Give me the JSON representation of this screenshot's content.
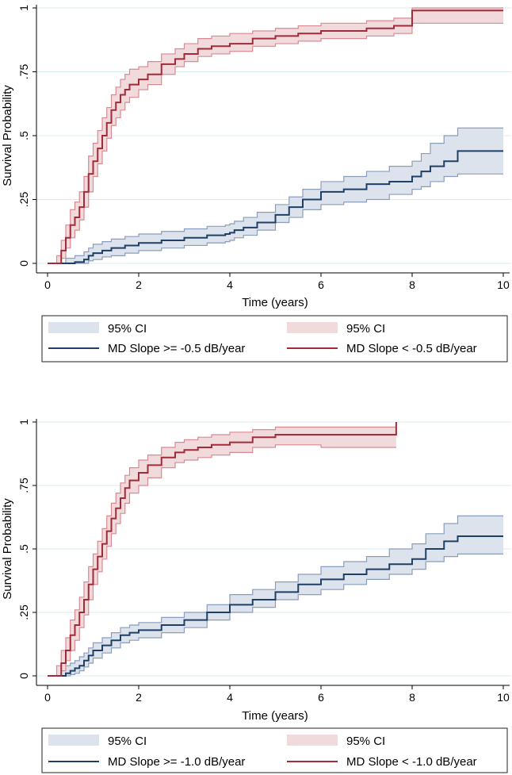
{
  "colors": {
    "group_a_line": "#1f3f66",
    "group_a_ci": "#dde3ec",
    "group_a_ci_edge": "#8a9dba",
    "group_b_line": "#a32a38",
    "group_b_ci": "#f1dadc",
    "group_b_ci_edge": "#d88a92",
    "grid": "#d8ecec"
  },
  "chart_data": [
    {
      "type": "line",
      "subtype": "kaplan-meier survival curves with 95% confidence bands",
      "xlabel": "Time (years)",
      "ylabel": "Survival Probability",
      "xlim": [
        0,
        10
      ],
      "ylim": [
        0,
        1
      ],
      "x_ticks": [
        "0",
        "2",
        "4",
        "6",
        "8",
        "10"
      ],
      "y_ticks": [
        "0",
        ".25",
        ".5",
        ".75",
        "1"
      ],
      "grid": "horizontal",
      "legend": {
        "position": "bottom",
        "ci_label_a": "95% CI",
        "ci_label_b": "95% CI",
        "line_label_a": "MD Slope >= -0.5 dB/year",
        "line_label_b": "MD Slope < -0.5 dB/year"
      },
      "series": [
        {
          "name": "MD Slope >= -0.5 dB/year",
          "x": [
            0.15,
            0.4,
            0.6,
            0.8,
            0.9,
            1.0,
            1.2,
            1.4,
            1.7,
            2.0,
            2.5,
            3.0,
            3.5,
            3.9,
            4.0,
            4.1,
            4.3,
            4.6,
            5.0,
            5.3,
            5.6,
            6.0,
            6.5,
            7.0,
            7.5,
            8.0,
            8.2,
            8.4,
            8.7,
            9.0,
            10.0
          ],
          "values": [
            0.0,
            0.0,
            0.005,
            0.015,
            0.03,
            0.04,
            0.05,
            0.06,
            0.07,
            0.08,
            0.09,
            0.1,
            0.11,
            0.115,
            0.12,
            0.13,
            0.14,
            0.16,
            0.19,
            0.22,
            0.25,
            0.28,
            0.29,
            0.31,
            0.32,
            0.34,
            0.36,
            0.38,
            0.4,
            0.44,
            0.44
          ],
          "ci_lower": [
            0.0,
            0.0,
            0.0,
            0.0,
            0.01,
            0.015,
            0.025,
            0.03,
            0.04,
            0.05,
            0.06,
            0.07,
            0.08,
            0.085,
            0.09,
            0.1,
            0.11,
            0.13,
            0.16,
            0.18,
            0.21,
            0.23,
            0.24,
            0.25,
            0.27,
            0.29,
            0.3,
            0.32,
            0.34,
            0.35,
            0.35
          ],
          "ci_upper": [
            0.0,
            0.02,
            0.03,
            0.045,
            0.06,
            0.075,
            0.085,
            0.095,
            0.105,
            0.115,
            0.125,
            0.135,
            0.145,
            0.15,
            0.155,
            0.165,
            0.18,
            0.2,
            0.23,
            0.26,
            0.29,
            0.32,
            0.34,
            0.36,
            0.38,
            0.4,
            0.43,
            0.47,
            0.5,
            0.53,
            0.53
          ]
        },
        {
          "name": "MD Slope < -0.5 dB/year",
          "x": [
            0.0,
            0.2,
            0.3,
            0.4,
            0.5,
            0.6,
            0.7,
            0.8,
            0.9,
            1.0,
            1.1,
            1.2,
            1.3,
            1.4,
            1.5,
            1.6,
            1.7,
            1.8,
            2.0,
            2.2,
            2.5,
            2.8,
            3.0,
            3.3,
            3.6,
            4.0,
            4.5,
            5.0,
            5.5,
            6.0,
            7.0,
            7.6,
            8.0,
            10.0
          ],
          "values": [
            0.0,
            0.0,
            0.05,
            0.1,
            0.15,
            0.18,
            0.22,
            0.28,
            0.35,
            0.4,
            0.45,
            0.5,
            0.55,
            0.6,
            0.63,
            0.66,
            0.68,
            0.7,
            0.72,
            0.74,
            0.78,
            0.8,
            0.82,
            0.84,
            0.85,
            0.86,
            0.88,
            0.89,
            0.9,
            0.91,
            0.92,
            0.93,
            0.99,
            0.99
          ],
          "ci_lower": [
            0.0,
            0.0,
            0.02,
            0.06,
            0.1,
            0.13,
            0.17,
            0.22,
            0.28,
            0.34,
            0.39,
            0.44,
            0.49,
            0.54,
            0.57,
            0.6,
            0.63,
            0.65,
            0.68,
            0.7,
            0.74,
            0.77,
            0.79,
            0.81,
            0.82,
            0.83,
            0.85,
            0.86,
            0.87,
            0.88,
            0.89,
            0.9,
            0.94,
            0.94
          ],
          "ci_upper": [
            0.0,
            0.03,
            0.09,
            0.15,
            0.21,
            0.24,
            0.28,
            0.34,
            0.42,
            0.47,
            0.52,
            0.57,
            0.61,
            0.66,
            0.69,
            0.72,
            0.74,
            0.76,
            0.77,
            0.79,
            0.82,
            0.84,
            0.86,
            0.88,
            0.89,
            0.9,
            0.91,
            0.92,
            0.93,
            0.94,
            0.95,
            0.96,
            1.0,
            1.0
          ]
        }
      ]
    },
    {
      "type": "line",
      "subtype": "kaplan-meier survival curves with 95% confidence bands",
      "xlabel": "Time (years)",
      "ylabel": "Survival Probability",
      "xlim": [
        0,
        10
      ],
      "ylim": [
        0,
        1
      ],
      "x_ticks": [
        "0",
        "2",
        "4",
        "6",
        "8",
        "10"
      ],
      "y_ticks": [
        "0",
        ".25",
        ".5",
        ".75",
        "1"
      ],
      "grid": "horizontal",
      "legend": {
        "position": "bottom",
        "ci_label_a": "95% CI",
        "ci_label_b": "95% CI",
        "line_label_a": "MD Slope >= -1.0 dB/year",
        "line_label_b": "MD Slope < -1.0 dB/year"
      },
      "series": [
        {
          "name": "MD Slope >= -1.0 dB/year",
          "x": [
            0.1,
            0.3,
            0.4,
            0.5,
            0.6,
            0.7,
            0.8,
            0.9,
            1.0,
            1.2,
            1.4,
            1.6,
            1.8,
            2.0,
            2.5,
            3.0,
            3.5,
            4.0,
            4.5,
            5.0,
            5.5,
            6.0,
            6.5,
            7.0,
            7.5,
            8.0,
            8.3,
            8.7,
            9.0,
            10.0
          ],
          "values": [
            0.0,
            0.0,
            0.01,
            0.02,
            0.03,
            0.04,
            0.06,
            0.08,
            0.1,
            0.12,
            0.14,
            0.16,
            0.17,
            0.18,
            0.2,
            0.22,
            0.25,
            0.28,
            0.3,
            0.33,
            0.36,
            0.38,
            0.4,
            0.42,
            0.44,
            0.46,
            0.5,
            0.53,
            0.55,
            0.55
          ],
          "ci_lower": [
            0.0,
            0.0,
            0.0,
            0.005,
            0.01,
            0.02,
            0.035,
            0.05,
            0.07,
            0.09,
            0.11,
            0.13,
            0.14,
            0.15,
            0.17,
            0.19,
            0.22,
            0.25,
            0.27,
            0.3,
            0.32,
            0.34,
            0.36,
            0.38,
            0.4,
            0.42,
            0.45,
            0.47,
            0.48,
            0.48
          ],
          "ci_upper": [
            0.0,
            0.03,
            0.04,
            0.05,
            0.06,
            0.075,
            0.09,
            0.11,
            0.13,
            0.15,
            0.17,
            0.19,
            0.2,
            0.21,
            0.23,
            0.25,
            0.28,
            0.32,
            0.34,
            0.37,
            0.4,
            0.43,
            0.45,
            0.47,
            0.5,
            0.52,
            0.56,
            0.6,
            0.63,
            0.63
          ]
        },
        {
          "name": "MD Slope < -1.0 dB/year",
          "x": [
            0.0,
            0.2,
            0.3,
            0.4,
            0.5,
            0.6,
            0.7,
            0.8,
            0.9,
            1.0,
            1.1,
            1.2,
            1.3,
            1.4,
            1.5,
            1.6,
            1.7,
            1.8,
            2.0,
            2.2,
            2.5,
            2.8,
            3.0,
            3.3,
            3.6,
            4.0,
            4.5,
            5.0,
            6.0,
            7.0,
            7.65
          ],
          "values": [
            0.0,
            0.0,
            0.05,
            0.1,
            0.16,
            0.2,
            0.25,
            0.3,
            0.36,
            0.42,
            0.47,
            0.52,
            0.57,
            0.62,
            0.66,
            0.7,
            0.74,
            0.77,
            0.8,
            0.83,
            0.86,
            0.88,
            0.89,
            0.9,
            0.91,
            0.92,
            0.94,
            0.95,
            0.95,
            0.95,
            1.0
          ],
          "ci_lower": [
            0.0,
            0.0,
            0.02,
            0.06,
            0.1,
            0.14,
            0.19,
            0.24,
            0.3,
            0.36,
            0.41,
            0.46,
            0.51,
            0.56,
            0.6,
            0.64,
            0.68,
            0.72,
            0.75,
            0.78,
            0.82,
            0.84,
            0.85,
            0.86,
            0.87,
            0.88,
            0.9,
            0.91,
            0.9,
            0.9,
            0.9
          ],
          "ci_upper": [
            0.0,
            0.04,
            0.1,
            0.15,
            0.22,
            0.26,
            0.31,
            0.37,
            0.43,
            0.48,
            0.53,
            0.58,
            0.63,
            0.68,
            0.72,
            0.76,
            0.79,
            0.82,
            0.85,
            0.87,
            0.9,
            0.92,
            0.93,
            0.94,
            0.95,
            0.96,
            0.97,
            0.98,
            0.98,
            0.98,
            1.0
          ]
        }
      ]
    }
  ]
}
